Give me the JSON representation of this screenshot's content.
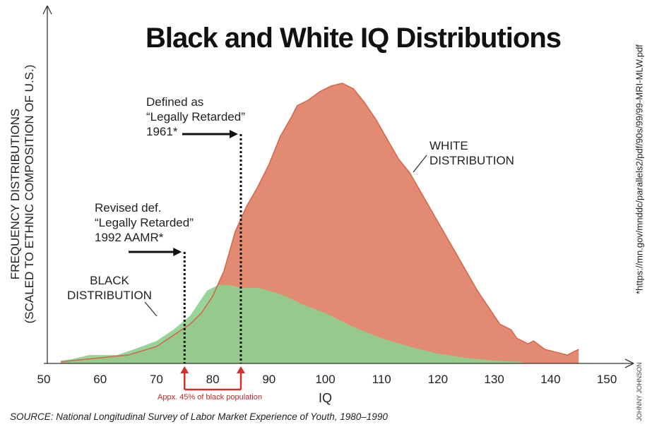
{
  "chart_data": {
    "type": "area",
    "title": "Black and White IQ Distributions",
    "xlabel": "IQ",
    "ylabel": "FREQUENCY DISTRIBUTIONS",
    "ylabel_sub": "(SCALED TO ETHNIC COMPOSITION OF U.S.)",
    "xlim": [
      50,
      152
    ],
    "ylim": [
      0,
      100
    ],
    "x_ticks": [
      50,
      60,
      70,
      80,
      90,
      100,
      110,
      120,
      130,
      140,
      150
    ],
    "series": [
      {
        "name": "WHITE DISTRIBUTION",
        "color": "#e38a72",
        "x": [
          53,
          55,
          60,
          65,
          70,
          73,
          76,
          78,
          80,
          82,
          84,
          86,
          88,
          90,
          92,
          94,
          95,
          97,
          99,
          101,
          103,
          105,
          107,
          109,
          111,
          113,
          115,
          117,
          119,
          121,
          123,
          125,
          127,
          129,
          131,
          133,
          134,
          136,
          137,
          139,
          141,
          143,
          145
        ],
        "values": [
          0.5,
          1,
          2,
          3,
          6,
          10,
          14,
          18,
          24,
          33,
          47,
          56,
          63,
          71,
          81,
          88,
          92,
          94,
          97,
          99,
          100,
          98,
          93,
          87,
          80,
          73,
          68,
          61,
          54,
          47,
          40,
          33,
          26,
          20,
          14,
          12,
          9,
          7,
          8,
          5,
          4,
          3,
          5
        ]
      },
      {
        "name": "BLACK DISTRIBUTION",
        "color": "#8fcf8f",
        "x": [
          53,
          55,
          58,
          60,
          63,
          66,
          70,
          73,
          76,
          79,
          81,
          83,
          85,
          88,
          90,
          93,
          96,
          100,
          105,
          110,
          115,
          120,
          125,
          130,
          135
        ],
        "values": [
          1,
          1.5,
          3,
          3,
          3,
          5,
          8,
          12,
          17,
          26,
          28,
          28,
          27,
          27,
          26,
          24,
          21,
          18,
          13,
          9,
          6,
          3.5,
          2,
          1,
          0.5
        ]
      }
    ],
    "annotations": [
      {
        "lines": [
          "Defined as",
          "“Legally Retarded”",
          "1961*"
        ],
        "x": 85
      },
      {
        "lines": [
          "Revised def.",
          "“Legally Retarded”",
          "1992 AAMR*"
        ],
        "x": 75
      },
      {
        "label": "Appx. 45% of black population",
        "from": 75,
        "to": 85
      }
    ]
  },
  "labels": {
    "white_line1": "WHITE",
    "white_line2": "DISTRIBUTION",
    "black_line1": "BLACK",
    "black_line2": "DISTRIBUTION",
    "def1961_line1": "Defined as",
    "def1961_line2": "“Legally Retarded”",
    "def1961_line3": "1961*",
    "def1992_line1": "Revised def.",
    "def1992_line2": "“Legally Retarded”",
    "def1992_line3": "1992 AAMR*",
    "bracket_note": "Appx. 45% of black population"
  },
  "source": "SOURCE: National Longitudinal Survey of Labor Market Experience of Youth, 1980–1990",
  "url": "*https://mn.gov/mnddc/parallels2/pdf/90s/99/99-MRI-MLW.pdf",
  "credit": "JOHNNY JOHNSON"
}
